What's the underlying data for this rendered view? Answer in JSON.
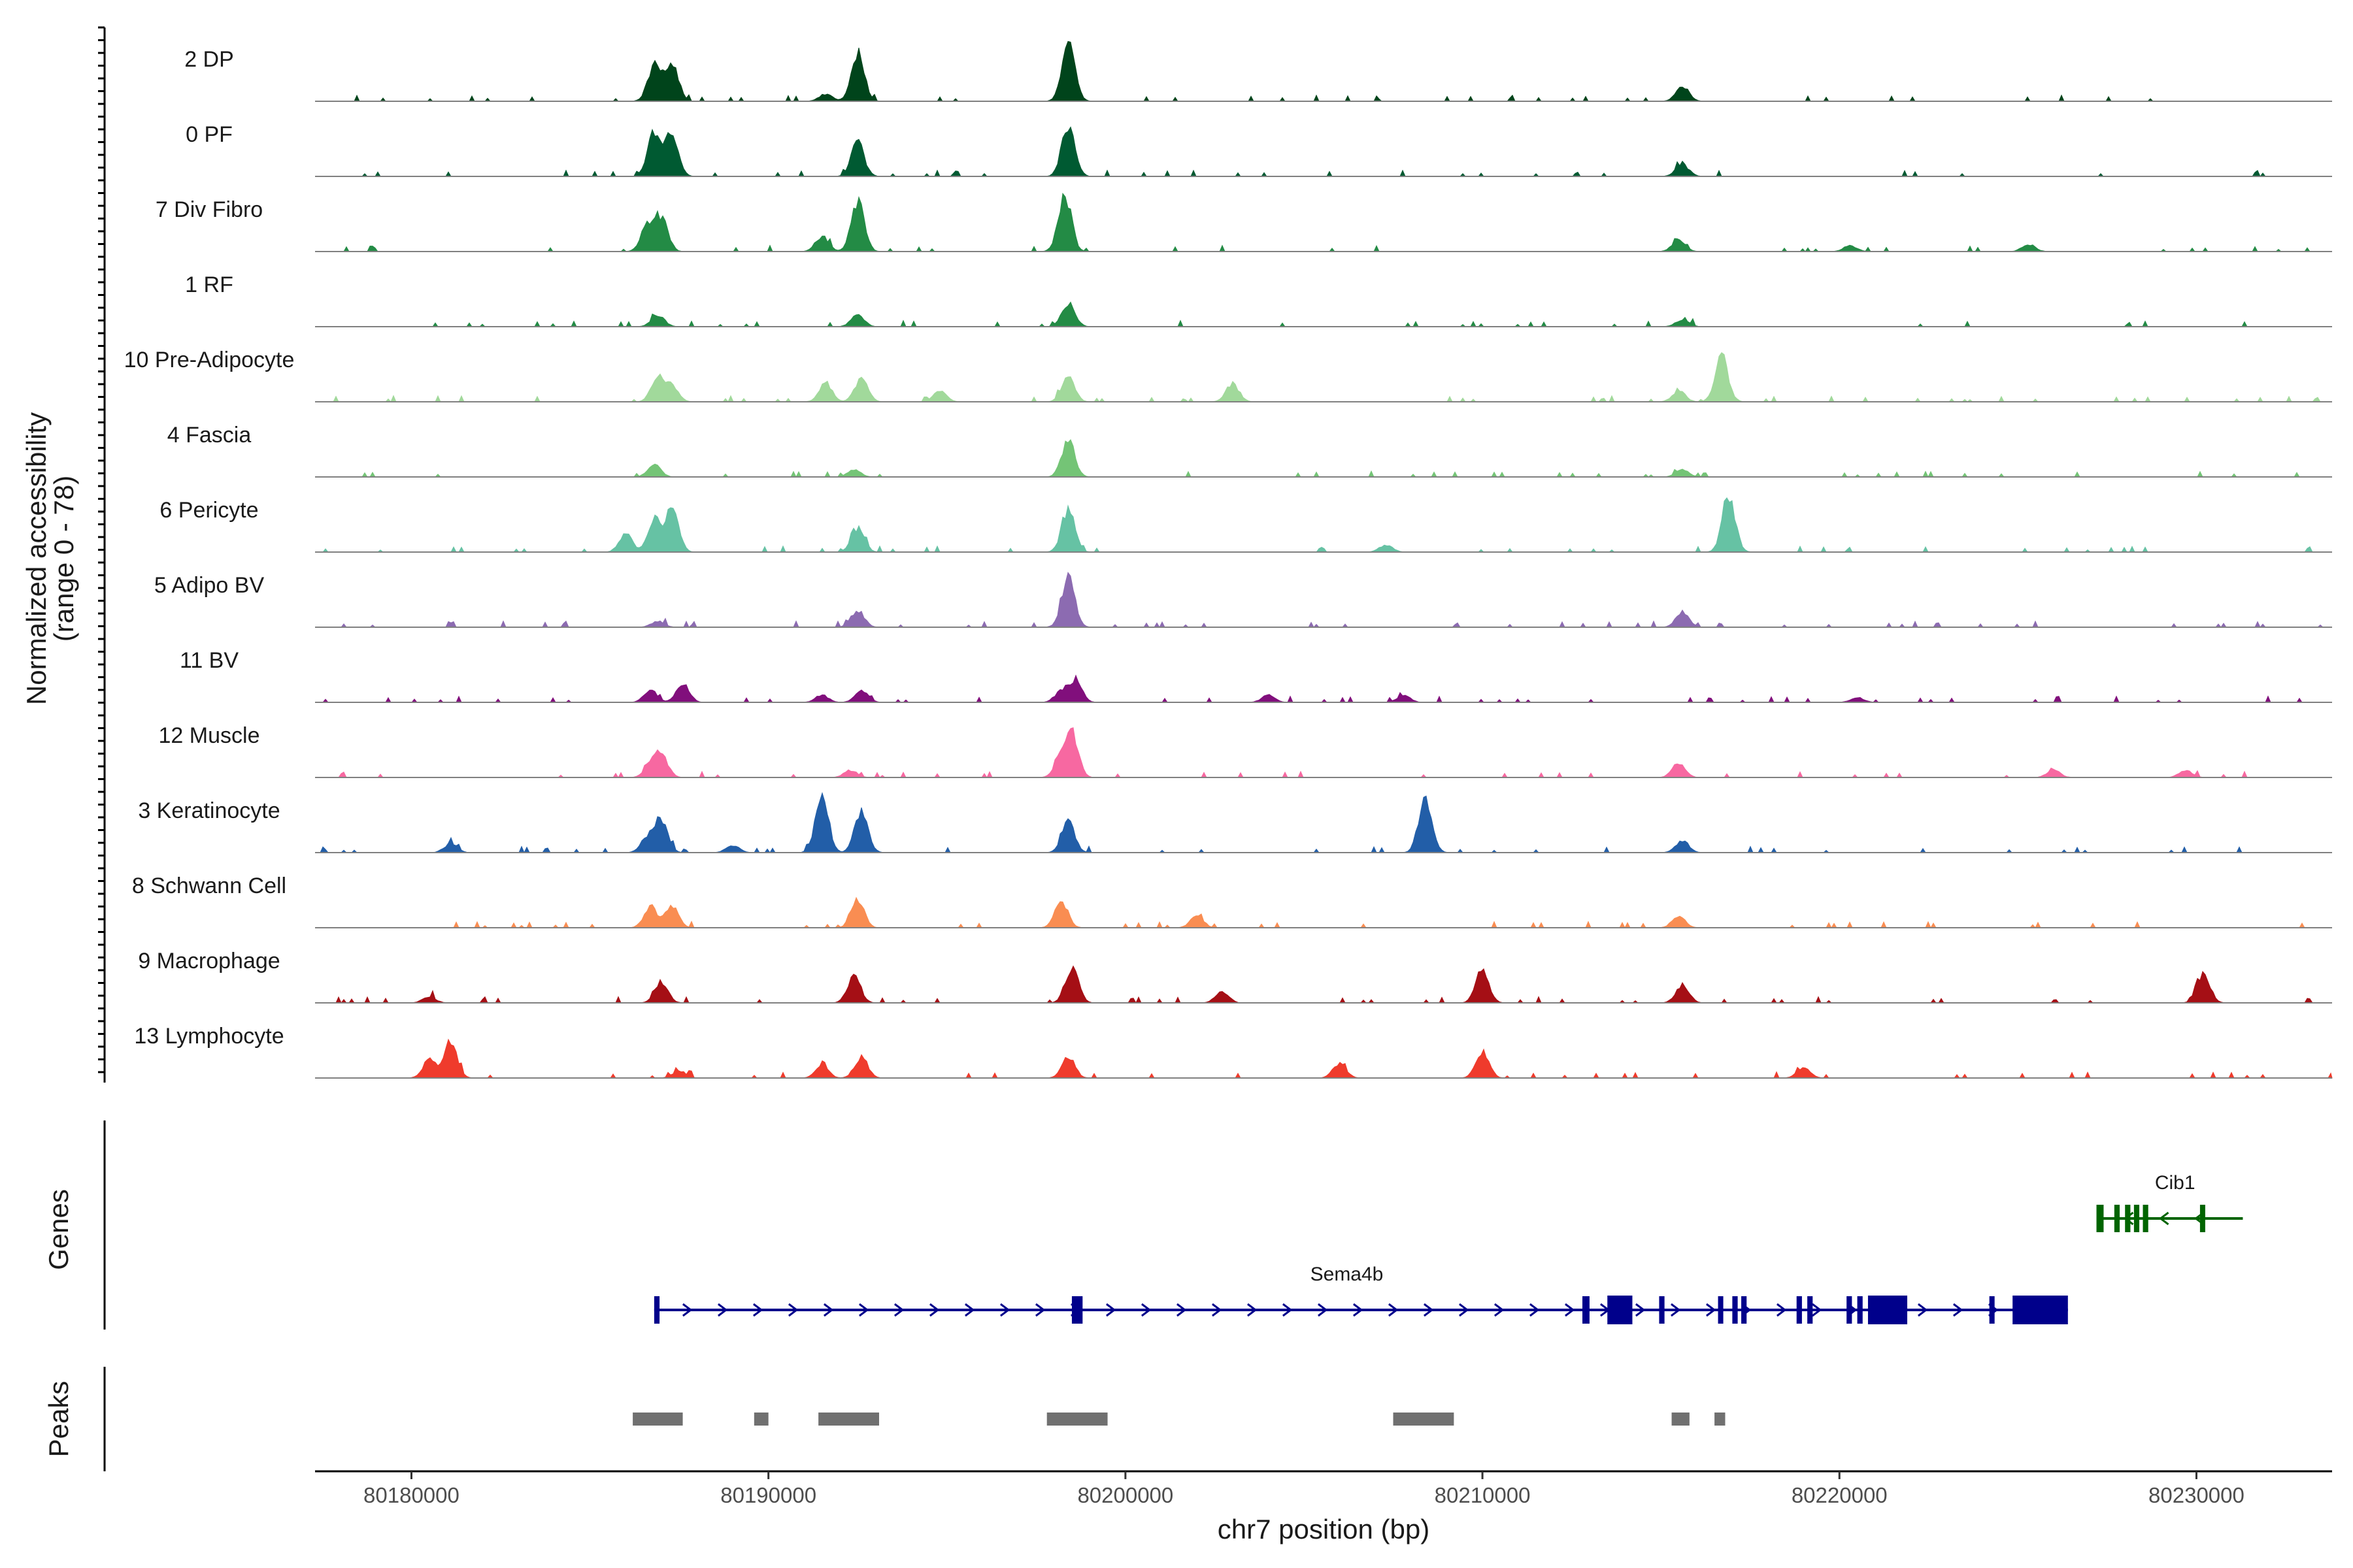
{
  "chart_data": {
    "type": "area",
    "title": "",
    "chromosome": "chr7",
    "xlabel": "chr7 position (bp)",
    "ylabel": "Normalized accessibility",
    "ylabel_range": "(range 0 - 78)",
    "ylim": [
      0,
      78
    ],
    "xlim": [
      80177300,
      80233800
    ],
    "x_ticks": [
      80180000,
      80190000,
      80200000,
      80210000,
      80220000,
      80230000
    ],
    "x_tick_labels": [
      "80180000",
      "80190000",
      "80200000",
      "80210000",
      "80220000",
      "80230000"
    ],
    "series": [
      {
        "name": "2 DP",
        "color": "#00441b",
        "peaks": [
          [
            80186800,
            60
          ],
          [
            80187300,
            60
          ],
          [
            80191600,
            12
          ],
          [
            80192500,
            80
          ],
          [
            80198400,
            95
          ],
          [
            80215600,
            25
          ]
        ]
      },
      {
        "name": "0 PF",
        "color": "#005a32",
        "peaks": [
          [
            80186800,
            75
          ],
          [
            80187300,
            70
          ],
          [
            80192500,
            55
          ],
          [
            80198400,
            85
          ],
          [
            80215600,
            20
          ]
        ]
      },
      {
        "name": "7 Div Fibro",
        "color": "#238b45",
        "peaks": [
          [
            80186600,
            40
          ],
          [
            80187000,
            55
          ],
          [
            80191500,
            25
          ],
          [
            80192500,
            85
          ],
          [
            80198300,
            95
          ],
          [
            80215500,
            20
          ],
          [
            80220300,
            10
          ],
          [
            80225300,
            12
          ]
        ]
      },
      {
        "name": "1 RF",
        "color": "#238b45",
        "peaks": [
          [
            80186900,
            20
          ],
          [
            80192500,
            20
          ],
          [
            80198400,
            40
          ],
          [
            80215600,
            12
          ]
        ]
      },
      {
        "name": "10 Pre-Adipocyte",
        "color": "#a1d99b",
        "peaks": [
          [
            80186900,
            40
          ],
          [
            80187300,
            25
          ],
          [
            80191600,
            30
          ],
          [
            80192600,
            38
          ],
          [
            80194800,
            18
          ],
          [
            80198400,
            40
          ],
          [
            80203000,
            30
          ],
          [
            80215500,
            18
          ],
          [
            80216700,
            75
          ]
        ]
      },
      {
        "name": "4 Fascia",
        "color": "#74c476",
        "peaks": [
          [
            80186800,
            20
          ],
          [
            80192400,
            12
          ],
          [
            80198400,
            60
          ],
          [
            80215600,
            12
          ]
        ]
      },
      {
        "name": "6 Pericyte",
        "color": "#66c2a4",
        "peaks": [
          [
            80186000,
            30
          ],
          [
            80186800,
            55
          ],
          [
            80187300,
            70
          ],
          [
            80192500,
            40
          ],
          [
            80198400,
            70
          ],
          [
            80207300,
            12
          ],
          [
            80216900,
            95
          ]
        ]
      },
      {
        "name": "5 Adipo BV",
        "color": "#8c6bb1",
        "peaks": [
          [
            80186900,
            10
          ],
          [
            80192500,
            28
          ],
          [
            80198400,
            85
          ],
          [
            80215600,
            25
          ]
        ]
      },
      {
        "name": "11 BV",
        "color": "#810f7c",
        "peaks": [
          [
            80186700,
            20
          ],
          [
            80187600,
            30
          ],
          [
            80191500,
            12
          ],
          [
            80192600,
            20
          ],
          [
            80198200,
            18
          ],
          [
            80198600,
            35
          ],
          [
            80204000,
            12
          ],
          [
            80207800,
            12
          ],
          [
            80220500,
            8
          ]
        ]
      },
      {
        "name": "12 Muscle",
        "color": "#f768a1",
        "peaks": [
          [
            80186700,
            20
          ],
          [
            80187000,
            38
          ],
          [
            80192300,
            12
          ],
          [
            80198200,
            30
          ],
          [
            80198500,
            70
          ],
          [
            80215500,
            25
          ],
          [
            80226000,
            12
          ],
          [
            80229700,
            12
          ]
        ]
      },
      {
        "name": "3 Keratinocyte",
        "color": "#225ea8",
        "peaks": [
          [
            80181100,
            15
          ],
          [
            80186600,
            25
          ],
          [
            80187000,
            50
          ],
          [
            80189000,
            12
          ],
          [
            80191500,
            90
          ],
          [
            80192600,
            70
          ],
          [
            80198400,
            50
          ],
          [
            80208400,
            95
          ],
          [
            80215600,
            20
          ]
        ]
      },
      {
        "name": "8 Schwann Cell",
        "color": "#f98d52",
        "peaks": [
          [
            80186700,
            35
          ],
          [
            80187300,
            35
          ],
          [
            80192500,
            45
          ],
          [
            80198200,
            45
          ],
          [
            80202000,
            20
          ],
          [
            80215500,
            20
          ]
        ]
      },
      {
        "name": "9 Macrophage",
        "color": "#a50f15",
        "peaks": [
          [
            80180500,
            10
          ],
          [
            80187000,
            35
          ],
          [
            80192400,
            45
          ],
          [
            80198500,
            60
          ],
          [
            80202700,
            20
          ],
          [
            80210000,
            55
          ],
          [
            80215600,
            30
          ],
          [
            80230200,
            50
          ]
        ]
      },
      {
        "name": "13 Lymphocyte",
        "color": "#ef3b2c",
        "peaks": [
          [
            80180500,
            30
          ],
          [
            80181100,
            60
          ],
          [
            80187500,
            12
          ],
          [
            80191500,
            20
          ],
          [
            80192600,
            35
          ],
          [
            80198400,
            35
          ],
          [
            80206000,
            25
          ],
          [
            80210000,
            45
          ],
          [
            80219000,
            18
          ]
        ]
      }
    ],
    "genes_label": "Genes",
    "genes": [
      {
        "name": "Sema4b",
        "strand": "+",
        "color": "#00008b",
        "start": 80186800,
        "end": 80226400,
        "exons": [
          [
            80186800,
            80186950
          ],
          [
            80198500,
            80198800
          ],
          [
            80212800,
            80213000
          ],
          [
            80213500,
            80214200
          ],
          [
            80214950,
            80215100
          ],
          [
            80216600,
            80216700
          ],
          [
            80217000,
            80217150
          ],
          [
            80217250,
            80217400
          ],
          [
            80218800,
            80218950
          ],
          [
            80219100,
            80219250
          ],
          [
            80220200,
            80220350
          ],
          [
            80220500,
            80220650
          ],
          [
            80220800,
            80221900
          ],
          [
            80224200,
            80224300
          ],
          [
            80224850,
            80226400
          ]
        ]
      },
      {
        "name": "Cib1",
        "strand": "-",
        "color": "#006400",
        "start": 80227200,
        "end": 80231300,
        "exons": [
          [
            80227200,
            80227400
          ],
          [
            80227700,
            80227850
          ],
          [
            80228000,
            80228150
          ],
          [
            80228250,
            80228400
          ],
          [
            80228500,
            80228650
          ],
          [
            80230100,
            80230200
          ]
        ]
      }
    ],
    "peaks_label": "Peaks",
    "peak_regions": [
      [
        80186200,
        80187600
      ],
      [
        80189600,
        80190000
      ],
      [
        80191400,
        80193100
      ],
      [
        80197800,
        80199500
      ],
      [
        80207500,
        80209200
      ],
      [
        80215300,
        80215800
      ],
      [
        80216500,
        80216800
      ]
    ]
  }
}
